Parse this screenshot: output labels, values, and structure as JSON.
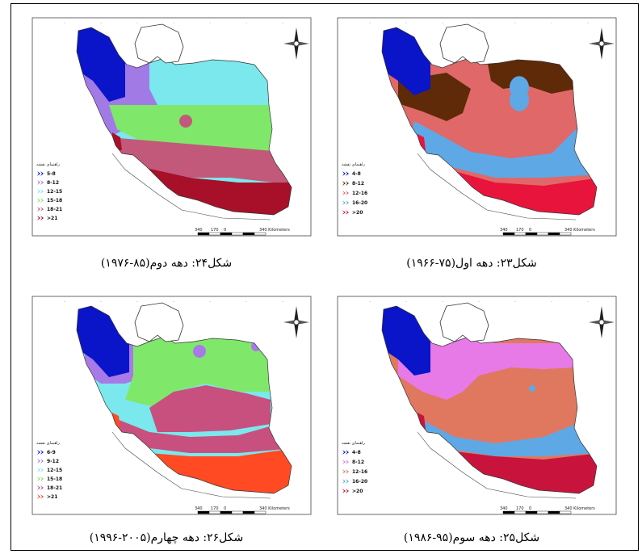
{
  "legend_title": "راهنمای نقشه",
  "scale_labels": [
    "340",
    "170",
    "0",
    "340 Kilometers"
  ],
  "maps": [
    {
      "id": "fig24",
      "caption": "شکل۲۴: دهه دوم(۸۵-۱۹۷۶)",
      "classes": [
        {
          "label": "5-8",
          "color": "#0a14c8"
        },
        {
          "label": "8-12",
          "color": "#a27ae6"
        },
        {
          "label": "12-15",
          "color": "#7ae8ec"
        },
        {
          "label": "15-18",
          "color": "#7fe86a"
        },
        {
          "label": "18-21",
          "color": "#c2597a"
        },
        {
          "label": ">21",
          "color": "#a8102a"
        }
      ]
    },
    {
      "id": "fig23",
      "caption": "شکل۲۳: دهه اول(۷۵-۱۹۶۶)",
      "classes": [
        {
          "label": "4-8",
          "color": "#0a14c8"
        },
        {
          "label": "8-12",
          "color": "#5e2a08"
        },
        {
          "label": "12-16",
          "color": "#e06868"
        },
        {
          "label": "16-20",
          "color": "#5ea8e6"
        },
        {
          "label": ">20",
          "color": "#e8143c"
        }
      ]
    },
    {
      "id": "fig26",
      "caption": "شکل۲۶: دهه چهارم(۲۰۰۵-۱۹۹۶)",
      "classes": [
        {
          "label": "6-9",
          "color": "#0a14c8"
        },
        {
          "label": "9-12",
          "color": "#a87ae8"
        },
        {
          "label": "12-15",
          "color": "#7ae8ec"
        },
        {
          "label": "15-18",
          "color": "#7fe86a"
        },
        {
          "label": "18-21",
          "color": "#c8507e"
        },
        {
          "label": ">21",
          "color": "#ff4a24"
        }
      ]
    },
    {
      "id": "fig25",
      "caption": "شکل۲۵: دهه سوم(۹۵-۱۹۸۶)",
      "classes": [
        {
          "label": "4-8",
          "color": "#0a14c8"
        },
        {
          "label": "8-12",
          "color": "#e87ae8"
        },
        {
          "label": "12-16",
          "color": "#e07860"
        },
        {
          "label": "16-20",
          "color": "#5ea8e6"
        },
        {
          "label": ">20",
          "color": "#c8143c"
        }
      ]
    }
  ]
}
